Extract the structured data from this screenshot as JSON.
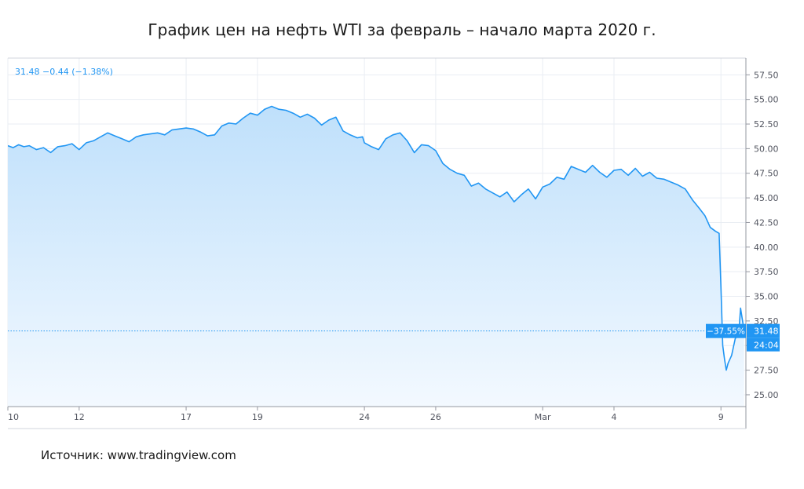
{
  "title": "График цен на нефть WTI за февраль – начало марта 2020 г.",
  "source": "Источник: www.tradingview.com",
  "colors": {
    "line": "#2196f3",
    "area_top": "#bfe0fb",
    "area_bottom": "#f3f9ff",
    "label_bg": "#2196f3",
    "grid": "#e9edf3"
  },
  "chart_data": {
    "type": "area",
    "legend_text": "31.48 −0.44 (−1.38%)",
    "last_price_label": "31.48",
    "change_label": "−37.55%",
    "countdown_label": "24:04",
    "ylim": [
      23.8,
      59.2
    ],
    "grid": true,
    "y_ticks": [
      "25.00",
      "27.50",
      "30.00",
      "32.50",
      "35.00",
      "37.50",
      "40.00",
      "42.50",
      "45.00",
      "47.50",
      "50.00",
      "52.50",
      "55.00",
      "57.50"
    ],
    "x_tick_labels": [
      "10",
      "12",
      "17",
      "19",
      "24",
      "26",
      "Mar",
      "4",
      "9"
    ],
    "x_tick_positions": [
      0,
      2,
      5,
      7,
      10,
      12,
      15,
      17,
      20
    ],
    "x_range": [
      0,
      20.7
    ],
    "series": [
      {
        "x": [
          0,
          0.15,
          0.3,
          0.45,
          0.6,
          0.8,
          1.0,
          1.2,
          1.4,
          1.6,
          1.8,
          2.0,
          2.2,
          2.4,
          2.6,
          2.8,
          3.0,
          3.2,
          3.4,
          3.6,
          3.8,
          4.0,
          4.2,
          4.4,
          4.6,
          4.8,
          5.0,
          5.2,
          5.4,
          5.6,
          5.8,
          6.0,
          6.2,
          6.4,
          6.6,
          6.8,
          7.0,
          7.2,
          7.4,
          7.6,
          7.8,
          8.0,
          8.2,
          8.4,
          8.6,
          8.8,
          9.0,
          9.2,
          9.4,
          9.6,
          9.8,
          9.95,
          10.0,
          10.2,
          10.4,
          10.6,
          10.8,
          11.0,
          11.2,
          11.4,
          11.6,
          11.8,
          12.0,
          12.2,
          12.4,
          12.6,
          12.8,
          13.0,
          13.2,
          13.4,
          13.6,
          13.8,
          14.0,
          14.2,
          14.4,
          14.6,
          14.8,
          15.0,
          15.2,
          15.4,
          15.6,
          15.8,
          16.0,
          16.2,
          16.4,
          16.6,
          16.8,
          17.0,
          17.2,
          17.4,
          17.6,
          17.8,
          18.0,
          18.2,
          18.4,
          18.6,
          18.8,
          19.0,
          19.2,
          19.4,
          19.55,
          19.7,
          19.85,
          19.95,
          20.0,
          20.05,
          20.1,
          20.15,
          20.2,
          20.3,
          20.4,
          20.5,
          20.55,
          20.65
        ],
        "values": [
          50.3,
          50.1,
          50.4,
          50.2,
          50.3,
          49.9,
          50.1,
          49.6,
          50.2,
          50.3,
          50.5,
          49.9,
          50.6,
          50.8,
          51.2,
          51.6,
          51.3,
          51.0,
          50.7,
          51.2,
          51.4,
          51.5,
          51.6,
          51.4,
          51.9,
          52.0,
          52.1,
          52.0,
          51.7,
          51.3,
          51.4,
          52.3,
          52.6,
          52.5,
          53.1,
          53.6,
          53.4,
          54.0,
          54.3,
          54.0,
          53.9,
          53.6,
          53.2,
          53.5,
          53.1,
          52.4,
          52.9,
          53.2,
          51.8,
          51.4,
          51.1,
          51.2,
          50.6,
          50.2,
          49.9,
          51.0,
          51.4,
          51.6,
          50.8,
          49.6,
          50.4,
          50.3,
          49.8,
          48.5,
          47.9,
          47.5,
          47.3,
          46.2,
          46.5,
          45.9,
          45.5,
          45.1,
          45.6,
          44.6,
          45.3,
          45.9,
          44.9,
          46.1,
          46.4,
          47.1,
          46.9,
          48.2,
          47.9,
          47.6,
          48.3,
          47.6,
          47.1,
          47.8,
          47.9,
          47.3,
          48.0,
          47.2,
          47.6,
          47.0,
          46.9,
          46.6,
          46.3,
          45.9,
          44.8,
          43.9,
          43.2,
          42.0,
          41.6,
          41.4,
          36.0,
          30.0,
          28.6,
          27.5,
          28.2,
          29.0,
          30.7,
          31.2,
          33.8,
          31.5
        ]
      }
    ]
  }
}
